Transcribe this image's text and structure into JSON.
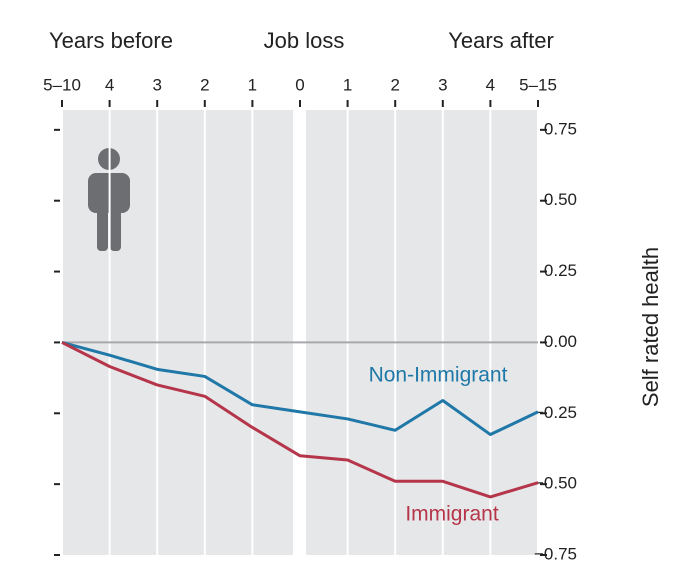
{
  "chart_data": {
    "type": "line",
    "headers": [
      "Years before",
      "Job loss",
      "Years after"
    ],
    "y_label": "Self rated health",
    "categories": [
      "5–10",
      "4",
      "3",
      "2",
      "1",
      "0",
      "1",
      "2",
      "3",
      "4",
      "5–15"
    ],
    "series": [
      {
        "name": "Non-Immigrant",
        "color": "#1f78a8",
        "values": [
          0,
          -0.045,
          -0.095,
          -0.12,
          -0.22,
          -0.245,
          -0.27,
          -0.31,
          -0.205,
          -0.325,
          -0.245
        ]
      },
      {
        "name": "Immigrant",
        "color": "#b5354a",
        "values": [
          0,
          -0.085,
          -0.15,
          -0.19,
          -0.3,
          -0.4,
          -0.415,
          -0.49,
          -0.49,
          -0.545,
          -0.495
        ]
      }
    ],
    "ylim": [
      -0.75,
      0.82
    ],
    "yticks": [
      0.75,
      {
        "value": 0.5,
        "label": "0.50"
      },
      0.25,
      {
        "value": 0,
        "label": "0.00"
      },
      {
        "value": -0.25,
        "label": "−0.25"
      },
      {
        "value": -0.5,
        "label": "−0.50"
      },
      {
        "value": -0.75,
        "label": "−0.75"
      }
    ],
    "grid": "x"
  }
}
